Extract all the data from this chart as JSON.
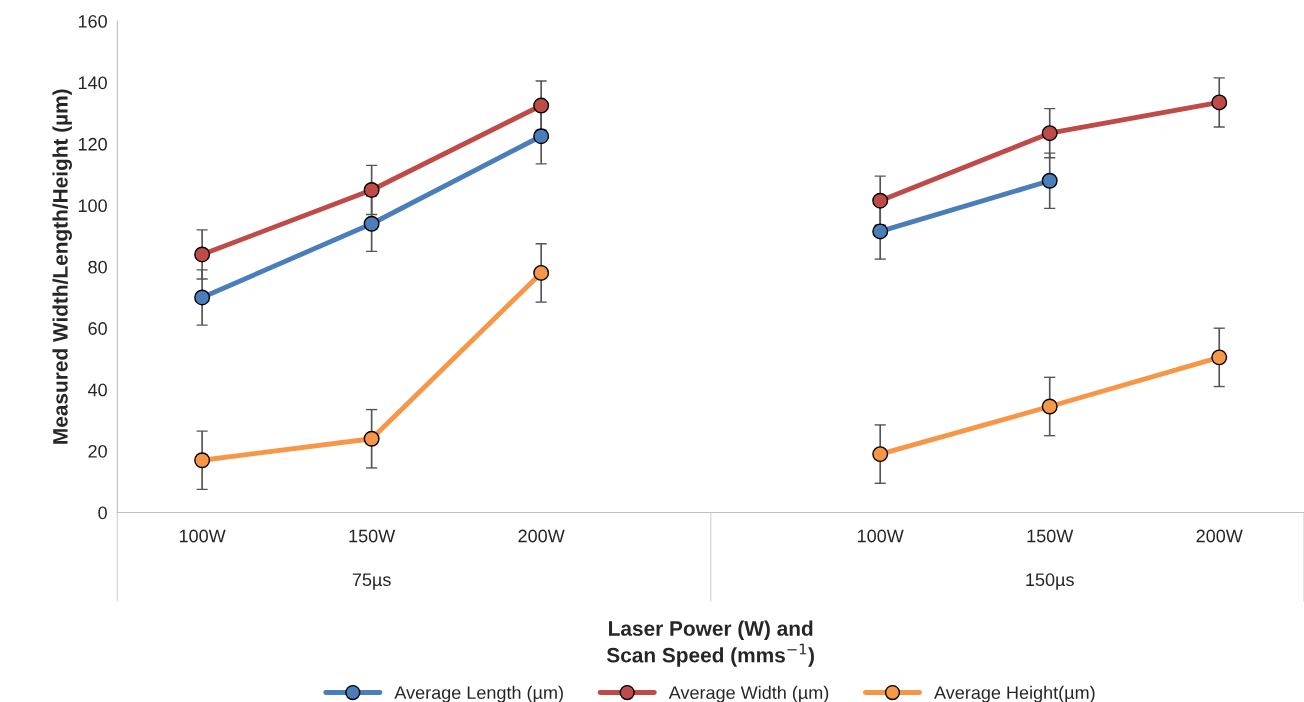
{
  "chart_data": {
    "type": "line",
    "xlabel": "Laser Power (W) and\nScan Speed (mms$^{−1}$)",
    "ylabel": "Measured Width/Length/Height (µm)",
    "categories": [
      "100W",
      "150W",
      "200W",
      null,
      "100W",
      "150W",
      "200W"
    ],
    "series": [
      {
        "name": "Average Length (µm)",
        "color": "#4a7ebb",
        "values": [
          70,
          94,
          122.5,
          null,
          91.5,
          108,
          null
        ],
        "errors": [
          9,
          9,
          9,
          null,
          9,
          9,
          null
        ]
      },
      {
        "name": "Average Width (µm)",
        "color": "#be4b48",
        "values": [
          84,
          105,
          132.5,
          null,
          101.5,
          123.5,
          133.5
        ],
        "errors": [
          8,
          8,
          8,
          null,
          8,
          8,
          8
        ]
      },
      {
        "name": "Average Height(µm)",
        "color": "#f79646",
        "values": [
          17,
          24,
          78,
          null,
          19,
          34.5,
          50.5
        ],
        "errors": [
          9.5,
          9.5,
          9.5,
          null,
          9.5,
          9.5,
          9.5
        ]
      }
    ],
    "annotations": [
      "75µs",
      "150µs"
    ],
    "ylim": [
      0,
      160
    ],
    "yticks": [
      0,
      20,
      40,
      60,
      80,
      100,
      120,
      140,
      160
    ],
    "grid": false,
    "legend": "bottom",
    "marker": "circle",
    "line_style": "solid"
  }
}
